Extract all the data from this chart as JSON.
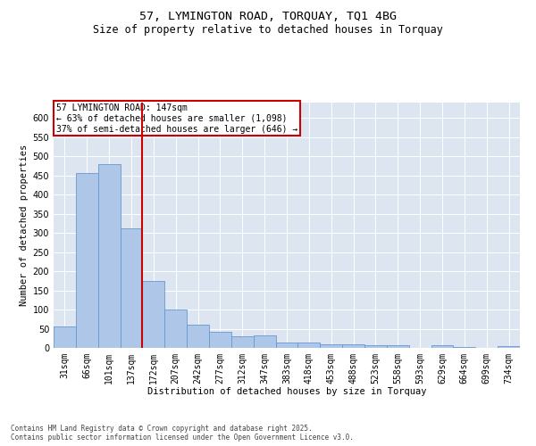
{
  "title_line1": "57, LYMINGTON ROAD, TORQUAY, TQ1 4BG",
  "title_line2": "Size of property relative to detached houses in Torquay",
  "xlabel": "Distribution of detached houses by size in Torquay",
  "ylabel": "Number of detached properties",
  "footer_line1": "Contains HM Land Registry data © Crown copyright and database right 2025.",
  "footer_line2": "Contains public sector information licensed under the Open Government Licence v3.0.",
  "annotation_line1": "57 LYMINGTON ROAD: 147sqm",
  "annotation_line2": "← 63% of detached houses are smaller (1,098)",
  "annotation_line3": "37% of semi-detached houses are larger (646) →",
  "bar_categories": [
    "31sqm",
    "66sqm",
    "101sqm",
    "137sqm",
    "172sqm",
    "207sqm",
    "242sqm",
    "277sqm",
    "312sqm",
    "347sqm",
    "383sqm",
    "418sqm",
    "453sqm",
    "488sqm",
    "523sqm",
    "558sqm",
    "593sqm",
    "629sqm",
    "664sqm",
    "699sqm",
    "734sqm"
  ],
  "bar_values": [
    55,
    455,
    480,
    313,
    175,
    100,
    60,
    43,
    30,
    32,
    14,
    14,
    9,
    9,
    8,
    8,
    0,
    8,
    3,
    0,
    4
  ],
  "bar_color": "#aec6e8",
  "bar_edge_color": "#6699cc",
  "vline_color": "#cc0000",
  "vline_position": 3.5,
  "annotation_box_color": "#cc0000",
  "background_color": "#dde6f0",
  "ylim": [
    0,
    640
  ],
  "yticks": [
    0,
    50,
    100,
    150,
    200,
    250,
    300,
    350,
    400,
    450,
    500,
    550,
    600
  ],
  "title_fontsize": 9.5,
  "subtitle_fontsize": 8.5,
  "ann_fontsize": 7,
  "tick_fontsize": 7,
  "label_fontsize": 7.5,
  "footer_fontsize": 5.5
}
